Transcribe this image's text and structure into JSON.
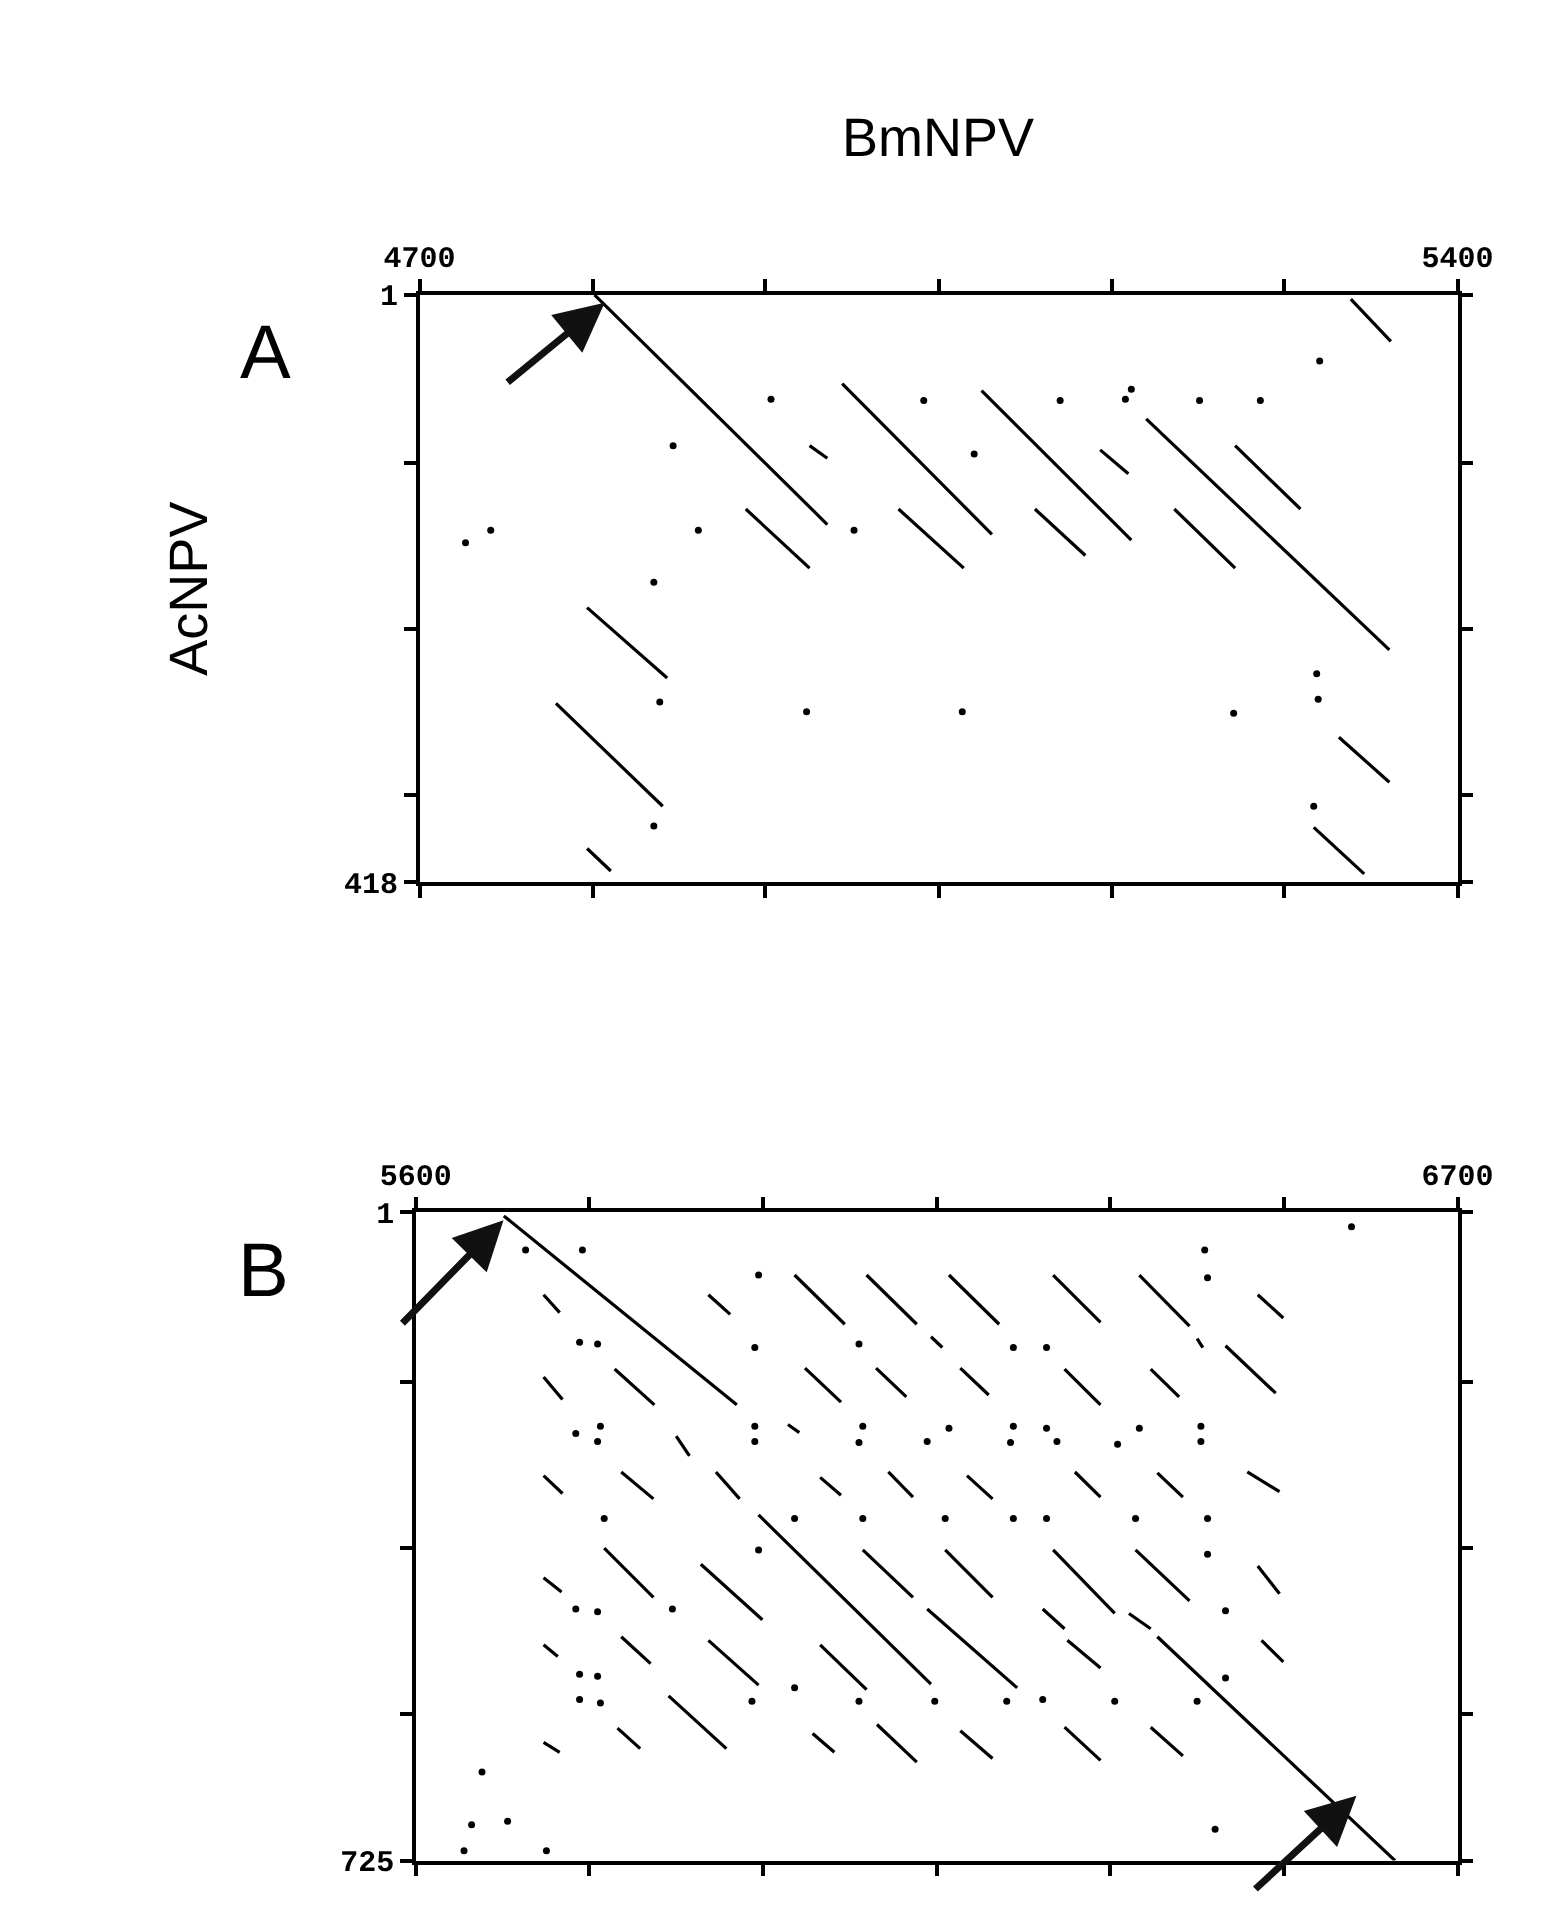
{
  "chart_data": [
    {
      "type": "line",
      "xlabel": "BmNPV",
      "ylabel": "AcNPV",
      "annotations": [
        "A"
      ],
      "grid": false,
      "marker": "none",
      "line_style": "solid",
      "xlim": [
        4700,
        5400
      ],
      "xticks": [
        4700,
        {
          "value": 4817,
          "label": null
        },
        {
          "value": 4933,
          "label": null
        },
        {
          "value": 5050,
          "label": null
        },
        {
          "value": 5167,
          "label": null
        },
        {
          "value": 5283,
          "label": null
        },
        5400
      ],
      "ylim": [
        418,
        1
      ],
      "yticks": [
        1,
        {
          "value": 120,
          "label": null
        },
        {
          "value": 238,
          "label": null
        },
        {
          "value": 356,
          "label": null
        },
        418
      ],
      "series": [
        {
          "color": "#000000",
          "x": [
            4818,
            4975
          ],
          "values": [
            1,
            164
          ]
        },
        {
          "color": "#000000",
          "x": [
            4985,
            5086
          ],
          "values": [
            64,
            171
          ]
        },
        {
          "color": "#000000",
          "x": [
            5079,
            5180
          ],
          "values": [
            69,
            175
          ]
        },
        {
          "color": "#000000",
          "x": [
            5190,
            5354
          ],
          "values": [
            89,
            253
          ]
        },
        {
          "color": "#000000",
          "x": [
            5250,
            5294
          ],
          "values": [
            108,
            153
          ]
        },
        {
          "color": "#000000",
          "x": [
            5159,
            5178
          ],
          "values": [
            111,
            128
          ]
        },
        {
          "color": "#000000",
          "x": [
            4963,
            4975
          ],
          "values": [
            108,
            117
          ]
        },
        {
          "color": "#000000",
          "x": [
            4920,
            4963
          ],
          "values": [
            153,
            195
          ]
        },
        {
          "color": "#000000",
          "x": [
            5023,
            5067
          ],
          "values": [
            153,
            195
          ]
        },
        {
          "color": "#000000",
          "x": [
            5115,
            5149
          ],
          "values": [
            153,
            186
          ]
        },
        {
          "color": "#000000",
          "x": [
            5209,
            5250
          ],
          "values": [
            153,
            195
          ]
        },
        {
          "color": "#000000",
          "x": [
            4813,
            4867
          ],
          "values": [
            223,
            273
          ]
        },
        {
          "color": "#000000",
          "x": [
            4792,
            4864
          ],
          "values": [
            291,
            364
          ]
        },
        {
          "color": "#000000",
          "x": [
            4813,
            4829
          ],
          "values": [
            394,
            410
          ]
        },
        {
          "color": "#000000",
          "x": [
            5320,
            5354
          ],
          "values": [
            315,
            347
          ]
        },
        {
          "color": "#000000",
          "x": [
            5303,
            5337
          ],
          "values": [
            379,
            412
          ]
        },
        {
          "color": "#000000",
          "x": [
            5328,
            5355
          ],
          "values": [
            4,
            34
          ]
        },
        {
          "type": "scatter",
          "color": "#000000",
          "x": [
            4937,
            5040,
            5132,
            5176,
            5180,
            5226,
            5267,
            4871,
            5074,
            4731,
            4748,
            4888,
            4993,
            4858,
            4862,
            4961,
            5066,
            5249,
            5305,
            5306,
            5303,
            4858,
            5307
          ],
          "values": [
            75,
            76,
            76,
            75,
            68,
            76,
            76,
            108,
            114,
            177,
            168,
            168,
            168,
            205,
            290,
            297,
            297,
            298,
            270,
            288,
            364,
            378,
            48
          ]
        }
      ]
    },
    {
      "type": "line",
      "annotations": [
        "B"
      ],
      "grid": false,
      "marker": "none",
      "line_style": "solid",
      "xlim": [
        5600,
        6700
      ],
      "xticks": [
        5600,
        {
          "value": 5783,
          "label": null
        },
        {
          "value": 5967,
          "label": null
        },
        {
          "value": 6150,
          "label": null
        },
        {
          "value": 6333,
          "label": null
        },
        {
          "value": 6517,
          "label": null
        },
        6700
      ],
      "ylim": [
        725,
        1
      ],
      "yticks": [
        1,
        {
          "value": 190,
          "label": null
        },
        {
          "value": 376,
          "label": null
        },
        {
          "value": 561,
          "label": null
        },
        725
      ],
      "series": [
        {
          "color": "#000000",
          "x": [
            5693,
            5939
          ],
          "values": [
            5,
            216
          ]
        },
        {
          "color": "#000000",
          "x": [
            5962,
            6144
          ],
          "values": [
            339,
            528
          ]
        },
        {
          "color": "#000000",
          "x": [
            6383,
            6634
          ],
          "values": [
            475,
            725
          ]
        },
        {
          "color": "#000000",
          "x": [
            5735,
            5752
          ],
          "values": [
            93,
            113
          ]
        },
        {
          "color": "#000000",
          "x": [
            5735,
            5755
          ],
          "values": [
            185,
            210
          ]
        },
        {
          "color": "#000000",
          "x": [
            5735,
            5755
          ],
          "values": [
            295,
            315
          ]
        },
        {
          "color": "#000000",
          "x": [
            5735,
            5754
          ],
          "values": [
            409,
            425
          ]
        },
        {
          "color": "#000000",
          "x": [
            5735,
            5750
          ],
          "values": [
            484,
            497
          ]
        },
        {
          "color": "#000000",
          "x": [
            5735,
            5752
          ],
          "values": [
            593,
            604
          ]
        },
        {
          "color": "#000000",
          "x": [
            5810,
            5852
          ],
          "values": [
            176,
            216
          ]
        },
        {
          "color": "#000000",
          "x": [
            5817,
            5851
          ],
          "values": [
            291,
            321
          ]
        },
        {
          "color": "#000000",
          "x": [
            5799,
            5851
          ],
          "values": [
            376,
            431
          ]
        },
        {
          "color": "#000000",
          "x": [
            5817,
            5848
          ],
          "values": [
            475,
            505
          ]
        },
        {
          "color": "#000000",
          "x": [
            5813,
            5837
          ],
          "values": [
            577,
            600
          ]
        },
        {
          "color": "#000000",
          "x": [
            5909,
            5932
          ],
          "values": [
            93,
            115
          ]
        },
        {
          "color": "#000000",
          "x": [
            5917,
            5942
          ],
          "values": [
            291,
            321
          ]
        },
        {
          "color": "#000000",
          "x": [
            5901,
            5966
          ],
          "values": [
            394,
            456
          ]
        },
        {
          "color": "#000000",
          "x": [
            5909,
            5962
          ],
          "values": [
            479,
            529
          ]
        },
        {
          "color": "#000000",
          "x": [
            5867,
            5928
          ],
          "values": [
            541,
            600
          ]
        },
        {
          "color": "#000000",
          "x": [
            6000,
            6053
          ],
          "values": [
            71,
            126
          ]
        },
        {
          "color": "#000000",
          "x": [
            6011,
            6049
          ],
          "values": [
            175,
            213
          ]
        },
        {
          "color": "#000000",
          "x": [
            6027,
            6049
          ],
          "values": [
            297,
            317
          ]
        },
        {
          "color": "#000000",
          "x": [
            6027,
            6076
          ],
          "values": [
            484,
            534
          ]
        },
        {
          "color": "#000000",
          "x": [
            6019,
            6042
          ],
          "values": [
            583,
            604
          ]
        },
        {
          "color": "#000000",
          "x": [
            6076,
            6129
          ],
          "values": [
            71,
            126
          ]
        },
        {
          "color": "#000000",
          "x": [
            6086,
            6118
          ],
          "values": [
            175,
            207
          ]
        },
        {
          "color": "#000000",
          "x": [
            6099,
            6125
          ],
          "values": [
            291,
            319
          ]
        },
        {
          "color": "#000000",
          "x": [
            6072,
            6125
          ],
          "values": [
            378,
            431
          ]
        },
        {
          "color": "#000000",
          "x": [
            6087,
            6129
          ],
          "values": [
            573,
            615
          ]
        },
        {
          "color": "#000000",
          "x": [
            6163,
            6216
          ],
          "values": [
            71,
            126
          ]
        },
        {
          "color": "#000000",
          "x": [
            6175,
            6205
          ],
          "values": [
            175,
            205
          ]
        },
        {
          "color": "#000000",
          "x": [
            6182,
            6209
          ],
          "values": [
            295,
            321
          ]
        },
        {
          "color": "#000000",
          "x": [
            6159,
            6209
          ],
          "values": [
            378,
            431
          ]
        },
        {
          "color": "#000000",
          "x": [
            6140,
            6235
          ],
          "values": [
            444,
            532
          ]
        },
        {
          "color": "#000000",
          "x": [
            6175,
            6209
          ],
          "values": [
            580,
            611
          ]
        },
        {
          "color": "#000000",
          "x": [
            6273,
            6323
          ],
          "values": [
            71,
            124
          ]
        },
        {
          "color": "#000000",
          "x": [
            6285,
            6323
          ],
          "values": [
            176,
            216
          ]
        },
        {
          "color": "#000000",
          "x": [
            6296,
            6323
          ],
          "values": [
            291,
            319
          ]
        },
        {
          "color": "#000000",
          "x": [
            6273,
            6338
          ],
          "values": [
            378,
            449
          ]
        },
        {
          "color": "#000000",
          "x": [
            6262,
            6285
          ],
          "values": [
            444,
            466
          ]
        },
        {
          "color": "#000000",
          "x": [
            6288,
            6323
          ],
          "values": [
            479,
            510
          ]
        },
        {
          "color": "#000000",
          "x": [
            6285,
            6323
          ],
          "values": [
            576,
            613
          ]
        },
        {
          "color": "#000000",
          "x": [
            6364,
            6417
          ],
          "values": [
            71,
            128
          ]
        },
        {
          "color": "#000000",
          "x": [
            6376,
            6406
          ],
          "values": [
            176,
            207
          ]
        },
        {
          "color": "#000000",
          "x": [
            6383,
            6410
          ],
          "values": [
            292,
            319
          ]
        },
        {
          "color": "#000000",
          "x": [
            6360,
            6417
          ],
          "values": [
            378,
            435
          ]
        },
        {
          "color": "#000000",
          "x": [
            6353,
            6376
          ],
          "values": [
            449,
            466
          ]
        },
        {
          "color": "#000000",
          "x": [
            6376,
            6410
          ],
          "values": [
            576,
            608
          ]
        },
        {
          "color": "#000000",
          "x": [
            6455,
            6508
          ],
          "values": [
            150,
            203
          ]
        },
        {
          "color": "#000000",
          "x": [
            6489,
            6516
          ],
          "values": [
            93,
            119
          ]
        },
        {
          "color": "#000000",
          "x": [
            6478,
            6512
          ],
          "values": [
            291,
            313
          ]
        },
        {
          "color": "#000000",
          "x": [
            6489,
            6512
          ],
          "values": [
            396,
            427
          ]
        },
        {
          "color": "#000000",
          "x": [
            6493,
            6516
          ],
          "values": [
            479,
            503
          ]
        },
        {
          "color": "#000000",
          "x": [
            5875,
            5889
          ],
          "values": [
            251,
            273
          ]
        },
        {
          "color": "#000000",
          "x": [
            5993,
            6005
          ],
          "values": [
            238,
            247
          ]
        },
        {
          "color": "#000000",
          "x": [
            6144,
            6156
          ],
          "values": [
            140,
            152
          ]
        },
        {
          "color": "#000000",
          "x": [
            6425,
            6431
          ],
          "values": [
            142,
            152
          ]
        },
        {
          "type": "scatter",
          "color": "#000000",
          "x": [
            5776,
            5716,
            5962,
            5773,
            5792,
            5958,
            6231,
            6266,
            6068,
            5769,
            5792,
            5795,
            5958,
            5958,
            6072,
            6068,
            6140,
            6163,
            6231,
            6228,
            6266,
            6277,
            6341,
            6364,
            6429,
            6429,
            5799,
            5962,
            6000,
            6072,
            6159,
            6231,
            6266,
            6360,
            6436,
            6436,
            5871,
            5769,
            5792,
            6455,
            5773,
            5792,
            5773,
            5795,
            5955,
            6000,
            6068,
            6148,
            6224,
            6262,
            6338,
            6425,
            6455,
            5670,
            5659,
            5697,
            5651,
            5738,
            6444,
            6588,
            6433,
            6436
          ],
          "values": [
            43,
            43,
            71,
            146,
            148,
            152,
            152,
            152,
            148,
            248,
            257,
            240,
            240,
            257,
            240,
            258,
            257,
            242,
            240,
            258,
            242,
            257,
            260,
            242,
            240,
            257,
            343,
            378,
            343,
            343,
            343,
            343,
            343,
            343,
            343,
            383,
            444,
            444,
            447,
            446,
            517,
            519,
            545,
            549,
            547,
            532,
            547,
            547,
            547,
            545,
            547,
            547,
            521,
            626,
            685,
            681,
            714,
            714,
            690,
            17,
            43,
            74
          ]
        }
      ]
    }
  ]
}
